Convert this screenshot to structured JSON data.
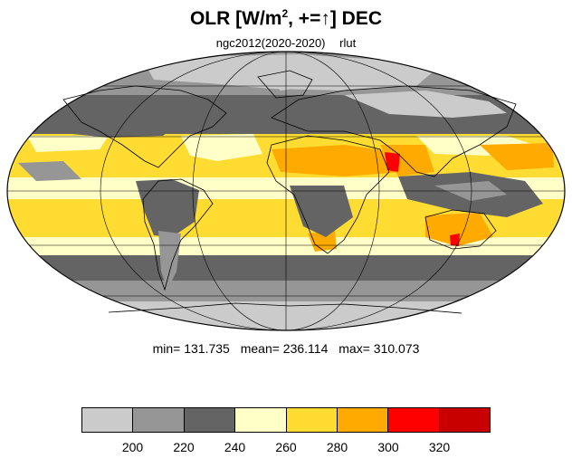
{
  "title": {
    "main": "OLR [W/m",
    "sup": "2",
    "rest": ", +=↑] DEC"
  },
  "subtitle": {
    "case": "ngc2012(2020-2020)",
    "variable": "rlut"
  },
  "stats": {
    "min": "min= 131.735",
    "mean": "mean= 236.114",
    "max": "max= 310.073"
  },
  "colorbar": {
    "colors": [
      "#cbcbcb",
      "#969696",
      "#646464",
      "#ffffc8",
      "#ffdc32",
      "#ffaa00",
      "#ff0000",
      "#c80000"
    ],
    "labels": [
      "200",
      "220",
      "240",
      "260",
      "280",
      "300",
      "320"
    ]
  },
  "map_colors": {
    "ocean_dark": "#646464",
    "mid_gray": "#969696",
    "light_gray": "#cbcbcb",
    "pale_yellow": "#ffffc8",
    "yellow": "#ffdc32",
    "orange": "#ffaa00",
    "red": "#ff0000"
  }
}
